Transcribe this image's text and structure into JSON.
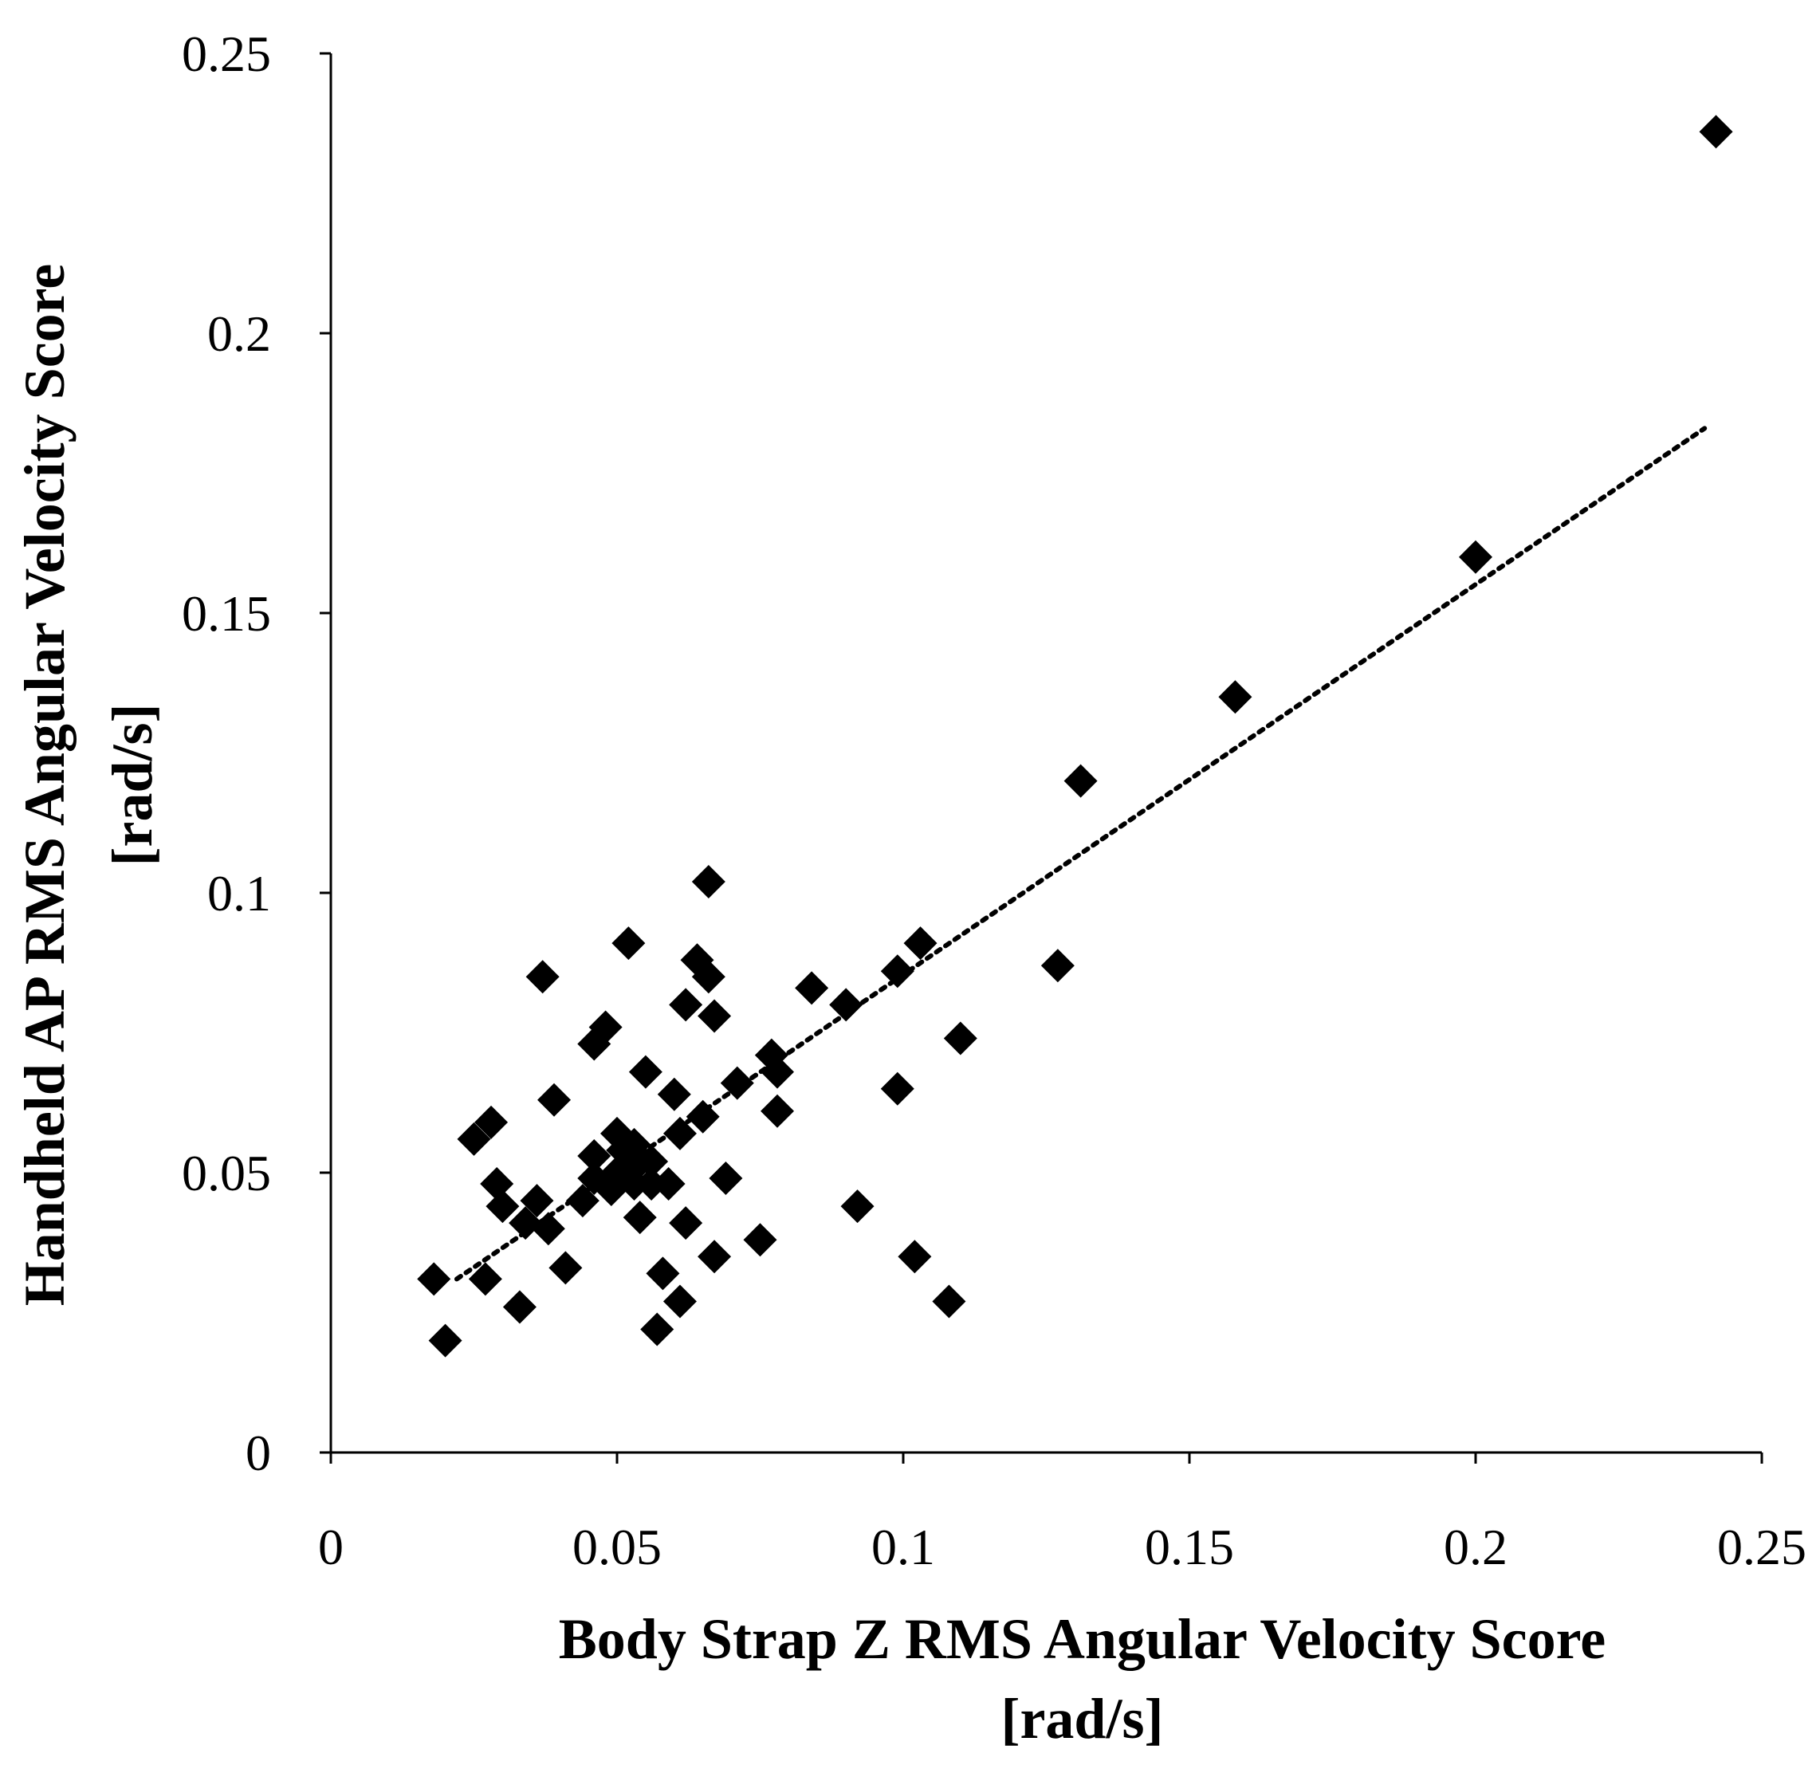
{
  "chart_data": {
    "type": "scatter",
    "title": "",
    "xlabel_lines": [
      "Body Strap Z RMS Angular Velocity Score",
      "[rad/s]"
    ],
    "ylabel_lines": [
      "Handheld AP RMS Angular Velocity Score",
      "[rad/s]"
    ],
    "xlim": [
      0,
      0.25
    ],
    "ylim": [
      0,
      0.25
    ],
    "x_ticks": [
      0,
      0.05,
      0.1,
      0.15,
      0.2,
      0.25
    ],
    "y_ticks": [
      0,
      0.05,
      0.1,
      0.15,
      0.2,
      0.25
    ],
    "x_tick_labels": [
      "0",
      "0.05",
      "0.1",
      "0.15",
      "0.2",
      "0.25"
    ],
    "y_tick_labels": [
      "0",
      "0.05",
      "0.1",
      "0.15",
      "0.2",
      "0.25"
    ],
    "grid": false,
    "marker": "diamond",
    "color": "#000000",
    "points": [
      [
        0.018,
        0.031
      ],
      [
        0.02,
        0.02
      ],
      [
        0.025,
        0.056
      ],
      [
        0.027,
        0.031
      ],
      [
        0.028,
        0.059
      ],
      [
        0.029,
        0.048
      ],
      [
        0.03,
        0.044
      ],
      [
        0.033,
        0.026
      ],
      [
        0.034,
        0.041
      ],
      [
        0.036,
        0.045
      ],
      [
        0.037,
        0.085
      ],
      [
        0.038,
        0.04
      ],
      [
        0.039,
        0.063
      ],
      [
        0.041,
        0.033
      ],
      [
        0.044,
        0.045
      ],
      [
        0.046,
        0.049
      ],
      [
        0.046,
        0.053
      ],
      [
        0.046,
        0.073
      ],
      [
        0.048,
        0.076
      ],
      [
        0.049,
        0.047
      ],
      [
        0.05,
        0.05
      ],
      [
        0.05,
        0.057
      ],
      [
        0.051,
        0.054
      ],
      [
        0.052,
        0.051
      ],
      [
        0.052,
        0.091
      ],
      [
        0.053,
        0.048
      ],
      [
        0.053,
        0.055
      ],
      [
        0.054,
        0.052
      ],
      [
        0.054,
        0.042
      ],
      [
        0.055,
        0.068
      ],
      [
        0.056,
        0.052
      ],
      [
        0.056,
        0.048
      ],
      [
        0.057,
        0.022
      ],
      [
        0.058,
        0.032
      ],
      [
        0.059,
        0.048
      ],
      [
        0.06,
        0.064
      ],
      [
        0.061,
        0.027
      ],
      [
        0.061,
        0.057
      ],
      [
        0.062,
        0.041
      ],
      [
        0.062,
        0.08
      ],
      [
        0.064,
        0.088
      ],
      [
        0.065,
        0.06
      ],
      [
        0.066,
        0.085
      ],
      [
        0.066,
        0.102
      ],
      [
        0.067,
        0.035
      ],
      [
        0.067,
        0.078
      ],
      [
        0.069,
        0.049
      ],
      [
        0.071,
        0.066
      ],
      [
        0.075,
        0.038
      ],
      [
        0.077,
        0.071
      ],
      [
        0.078,
        0.061
      ],
      [
        0.078,
        0.068
      ],
      [
        0.084,
        0.083
      ],
      [
        0.09,
        0.08
      ],
      [
        0.092,
        0.044
      ],
      [
        0.099,
        0.065
      ],
      [
        0.099,
        0.086
      ],
      [
        0.102,
        0.035
      ],
      [
        0.103,
        0.091
      ],
      [
        0.108,
        0.027
      ],
      [
        0.11,
        0.074
      ],
      [
        0.127,
        0.087
      ],
      [
        0.131,
        0.12
      ],
      [
        0.158,
        0.135
      ],
      [
        0.2,
        0.16
      ],
      [
        0.242,
        0.236
      ]
    ],
    "trendline": {
      "style": "dotted",
      "x": [
        0.022,
        0.24
      ],
      "y": [
        0.031,
        0.183
      ]
    }
  }
}
